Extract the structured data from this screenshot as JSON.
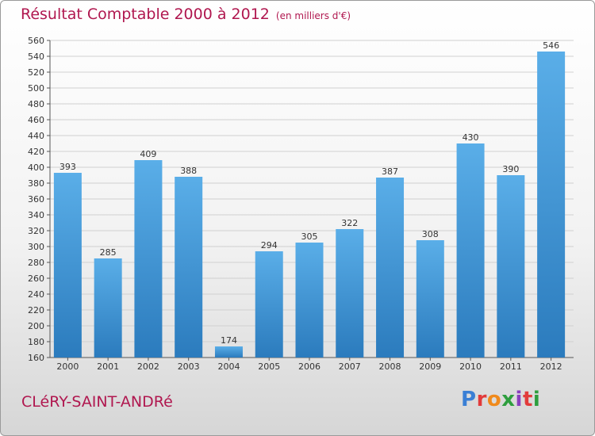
{
  "title": "Résultat Comptable 2000 à 2012",
  "unit": "(en milliers d'€)",
  "commune": "CLéRY-SAINT-ANDRé",
  "logo": {
    "text": "Proxiti",
    "colors": [
      "#3a7fd5",
      "#e23b3b",
      "#f08a1c",
      "#2e9e3e",
      "#8a3fbf",
      "#e23b3b",
      "#2e9e3e"
    ]
  },
  "colors": {
    "bar_top": "#5aaee8",
    "bar_bottom": "#2b7bbd",
    "title": "#b0174f"
  },
  "chart_data": {
    "type": "bar",
    "categories": [
      "2000",
      "2001",
      "2002",
      "2003",
      "2004",
      "2005",
      "2006",
      "2007",
      "2008",
      "2009",
      "2010",
      "2011",
      "2012"
    ],
    "values": [
      393,
      285,
      409,
      388,
      174,
      294,
      305,
      322,
      387,
      308,
      430,
      390,
      546
    ],
    "ylim": [
      160,
      560
    ],
    "yticks": [
      160,
      180,
      200,
      220,
      240,
      260,
      280,
      300,
      320,
      340,
      360,
      380,
      400,
      420,
      440,
      460,
      480,
      500,
      520,
      540,
      560
    ],
    "grid": true
  }
}
